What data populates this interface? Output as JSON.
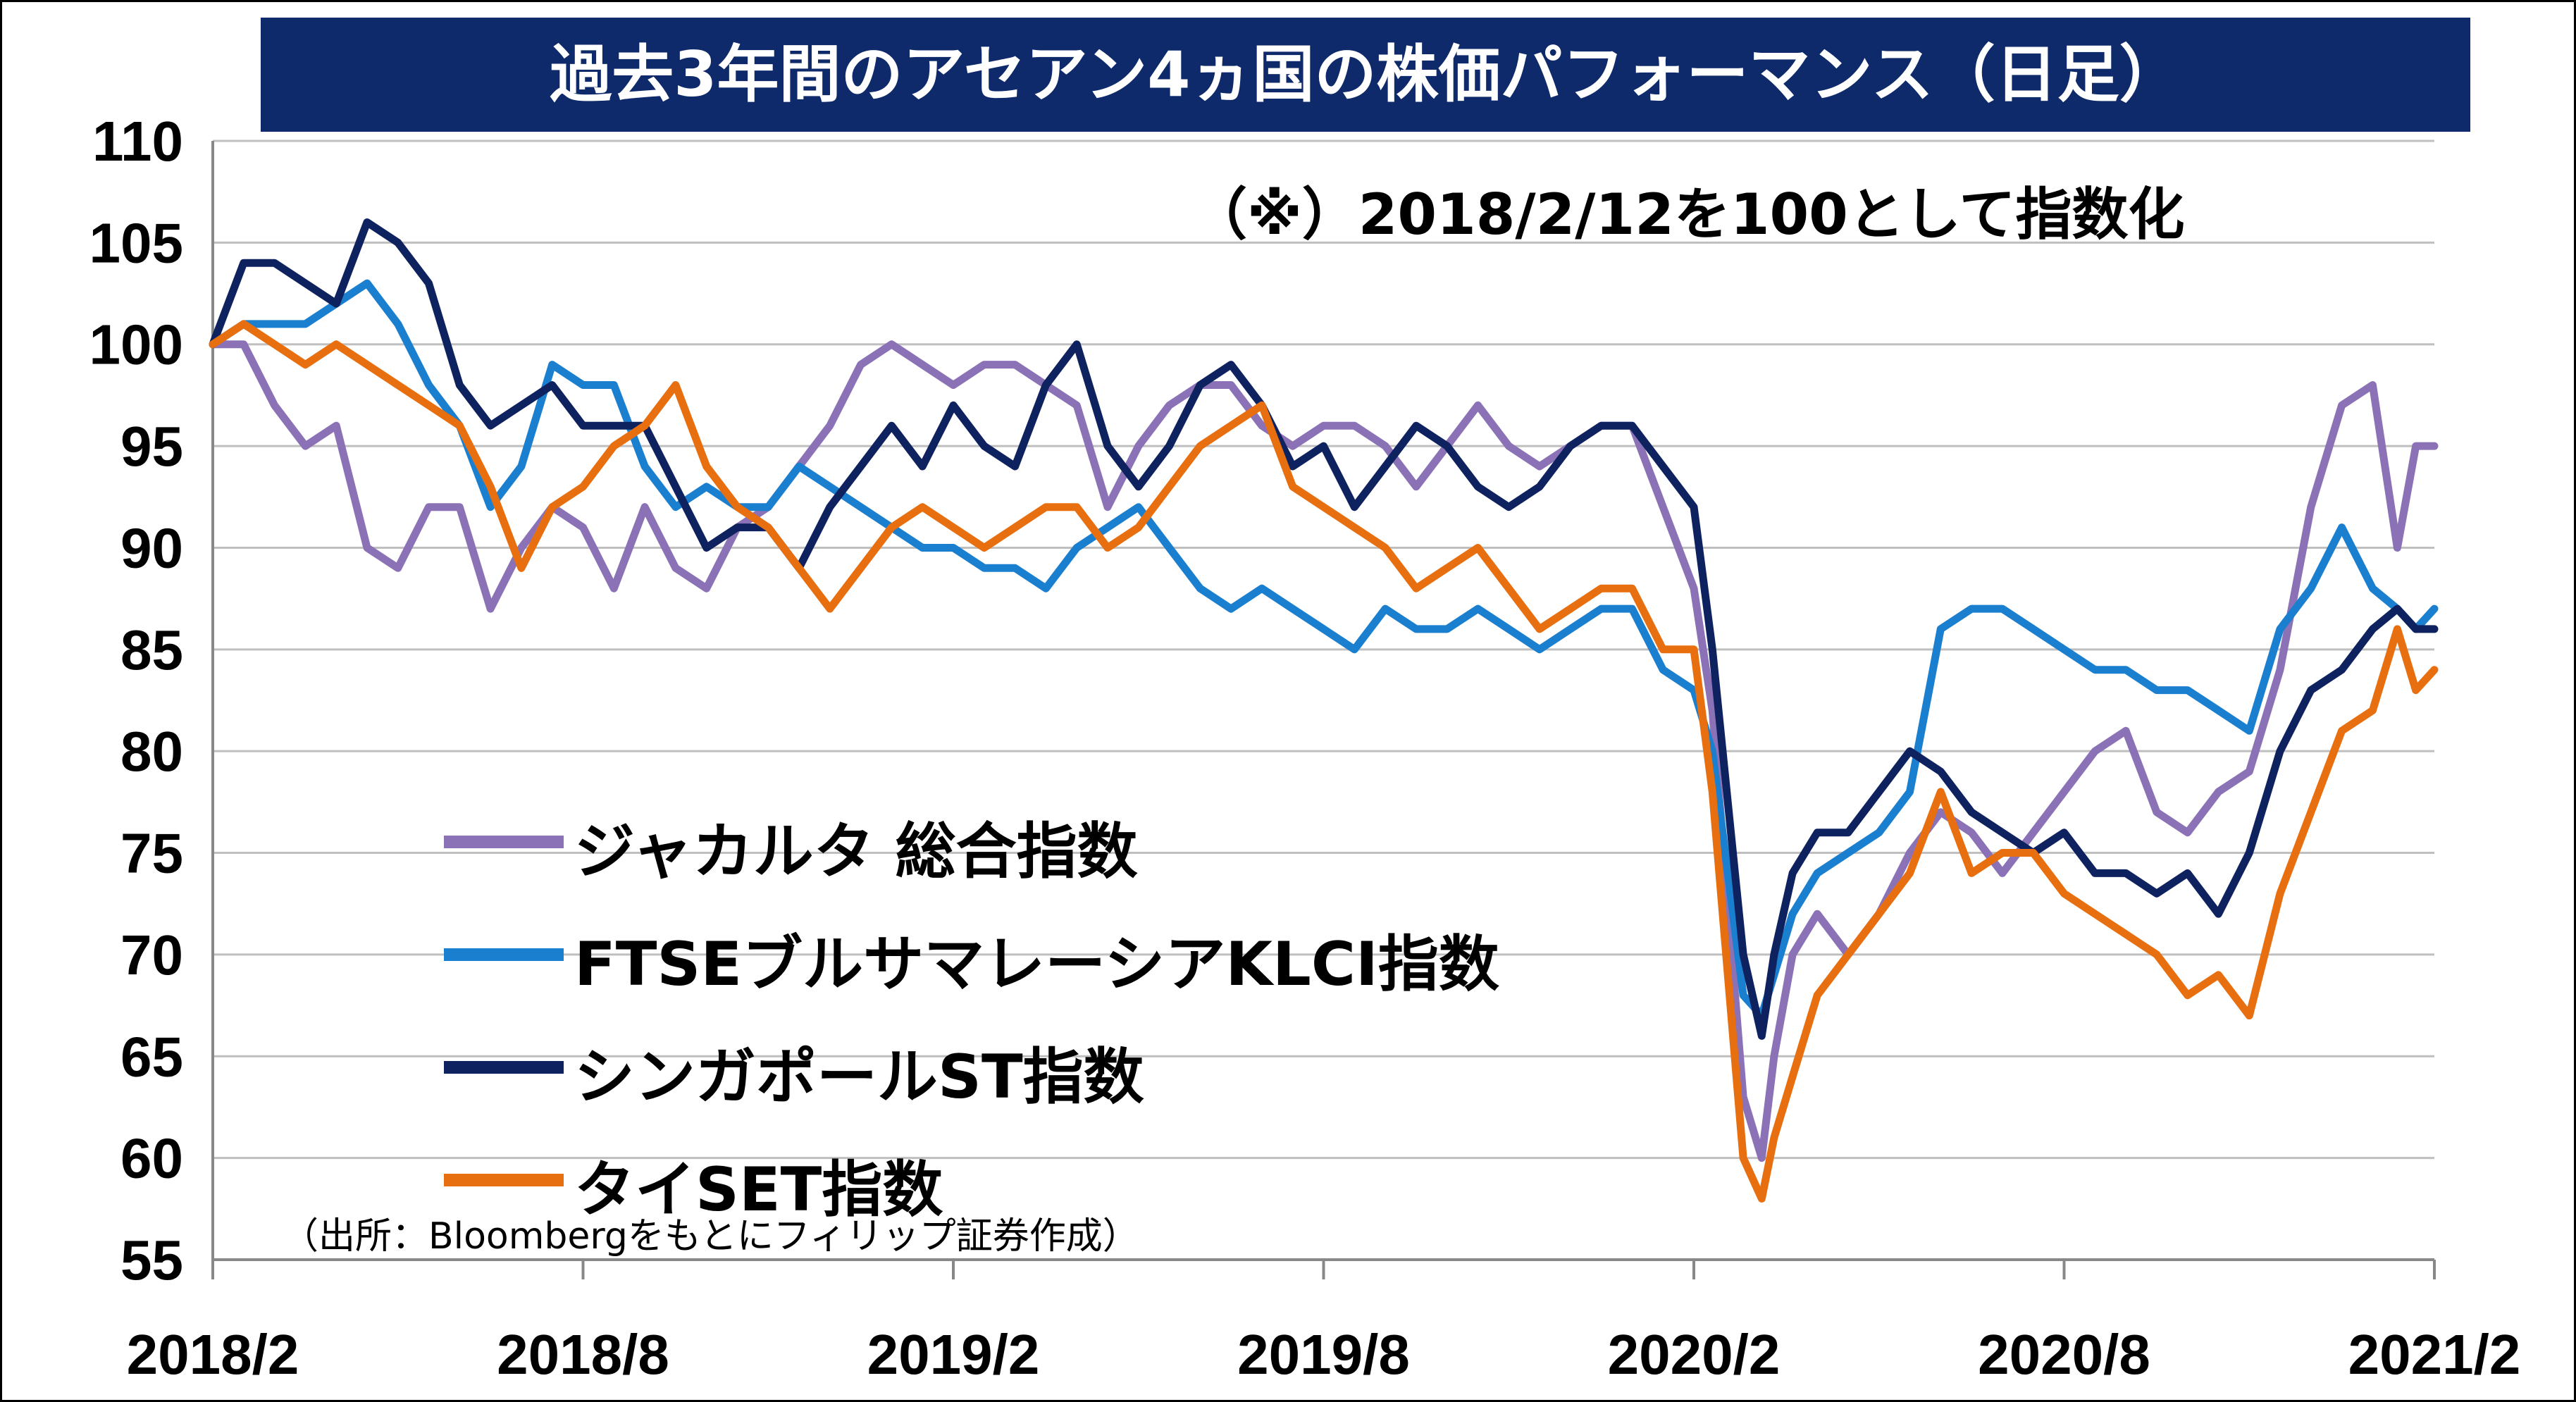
{
  "title": "過去3年間のアセアン4ヵ国の株価パフォーマンス（日足）",
  "note": "（※）2018/2/12を100として指数化",
  "source": "（出所：Bloombergをもとにフィリップ証券作成）",
  "colors": {
    "title_bg": "#0f2a6b",
    "jakarta": "#8b71b6",
    "klci": "#1b7fd0",
    "singapore": "#0f2260",
    "thai": "#e86f10",
    "grid": "#bfbfbf"
  },
  "chart_data": {
    "type": "line",
    "title": "過去3年間のアセアン4ヵ国の株価パフォーマンス（日足）",
    "ylim": [
      55,
      110
    ],
    "yticks": [
      110,
      105,
      100,
      95,
      90,
      85,
      80,
      75,
      70,
      65,
      60,
      55
    ],
    "xlim": [
      0,
      36
    ],
    "xticks": [
      {
        "pos": 0,
        "label": "2018/2"
      },
      {
        "pos": 6,
        "label": "2018/8"
      },
      {
        "pos": 12,
        "label": "2019/2"
      },
      {
        "pos": 18,
        "label": "2019/8"
      },
      {
        "pos": 24,
        "label": "2020/2"
      },
      {
        "pos": 30,
        "label": "2020/8"
      },
      {
        "pos": 36,
        "label": "2021/2"
      }
    ],
    "grid": "horizontal",
    "legend_position": "lower-left",
    "series": [
      {
        "name": "ジャカルタ 総合指数",
        "color": "#8b71b6",
        "x": [
          0,
          0.5,
          1,
          1.5,
          2,
          2.5,
          3,
          3.5,
          4,
          4.5,
          5,
          5.5,
          6,
          6.5,
          7,
          7.5,
          8,
          8.5,
          9,
          9.5,
          10,
          10.5,
          11,
          11.5,
          12,
          12.5,
          13,
          13.5,
          14,
          14.5,
          15,
          15.5,
          16,
          16.5,
          17,
          17.5,
          18,
          18.5,
          19,
          19.5,
          20,
          20.5,
          21,
          21.5,
          22,
          22.5,
          23,
          23.5,
          24,
          24.3,
          24.8,
          25.1,
          25.3,
          25.6,
          26,
          26.5,
          27,
          27.5,
          28,
          28.5,
          29,
          29.5,
          30,
          30.5,
          31,
          31.5,
          32,
          32.5,
          33,
          33.5,
          34,
          34.5,
          35,
          35.4,
          35.7,
          36
        ],
        "y": [
          100,
          100,
          97,
          95,
          96,
          90,
          89,
          92,
          92,
          87,
          90,
          92,
          91,
          88,
          92,
          89,
          88,
          91,
          92,
          94,
          96,
          99,
          100,
          99,
          98,
          99,
          99,
          98,
          97,
          92,
          95,
          97,
          98,
          98,
          96,
          95,
          96,
          96,
          95,
          93,
          95,
          97,
          95,
          94,
          95,
          96,
          96,
          92,
          88,
          82,
          63,
          60,
          65,
          70,
          72,
          70,
          72,
          75,
          77,
          76,
          74,
          76,
          78,
          80,
          81,
          77,
          76,
          78,
          79,
          84,
          92,
          97,
          98,
          90,
          95,
          95
        ]
      },
      {
        "name": "FTSEブルサマレーシアKLCI指数",
        "color": "#1b7fd0",
        "x": [
          0,
          0.5,
          1,
          1.5,
          2,
          2.5,
          3,
          3.5,
          4,
          4.5,
          5,
          5.5,
          6,
          6.5,
          7,
          7.5,
          8,
          8.5,
          9,
          9.5,
          10,
          10.5,
          11,
          11.5,
          12,
          12.5,
          13,
          13.5,
          14,
          14.5,
          15,
          15.5,
          16,
          16.5,
          17,
          17.5,
          18,
          18.5,
          19,
          19.5,
          20,
          20.5,
          21,
          21.5,
          22,
          22.5,
          23,
          23.5,
          24,
          24.3,
          24.8,
          25.1,
          25.3,
          25.6,
          26,
          26.5,
          27,
          27.5,
          28,
          28.5,
          29,
          29.5,
          30,
          30.5,
          31,
          31.5,
          32,
          32.5,
          33,
          33.5,
          34,
          34.5,
          35,
          35.4,
          35.7,
          36
        ],
        "y": [
          100,
          101,
          101,
          101,
          102,
          103,
          101,
          98,
          96,
          92,
          94,
          99,
          98,
          98,
          94,
          92,
          93,
          92,
          92,
          94,
          93,
          92,
          91,
          90,
          90,
          89,
          89,
          88,
          90,
          91,
          92,
          90,
          88,
          87,
          88,
          87,
          86,
          85,
          87,
          86,
          86,
          87,
          86,
          85,
          86,
          87,
          87,
          84,
          83,
          80,
          68,
          67,
          69,
          72,
          74,
          75,
          76,
          78,
          86,
          87,
          87,
          86,
          85,
          84,
          84,
          83,
          83,
          82,
          81,
          86,
          88,
          91,
          88,
          87,
          86,
          87
        ]
      },
      {
        "name": "シンガポールST指数",
        "color": "#0f2260",
        "x": [
          0,
          0.5,
          1,
          1.5,
          2,
          2.5,
          3,
          3.5,
          4,
          4.5,
          5,
          5.5,
          6,
          6.5,
          7,
          7.5,
          8,
          8.5,
          9,
          9.5,
          10,
          10.5,
          11,
          11.5,
          12,
          12.5,
          13,
          13.5,
          14,
          14.5,
          15,
          15.5,
          16,
          16.5,
          17,
          17.5,
          18,
          18.5,
          19,
          19.5,
          20,
          20.5,
          21,
          21.5,
          22,
          22.5,
          23,
          23.5,
          24,
          24.3,
          24.8,
          25.1,
          25.3,
          25.6,
          26,
          26.5,
          27,
          27.5,
          28,
          28.5,
          29,
          29.5,
          30,
          30.5,
          31,
          31.5,
          32,
          32.5,
          33,
          33.5,
          34,
          34.5,
          35,
          35.4,
          35.7,
          36
        ],
        "y": [
          100,
          104,
          104,
          103,
          102,
          106,
          105,
          103,
          98,
          96,
          97,
          98,
          96,
          96,
          96,
          93,
          90,
          91,
          91,
          89,
          92,
          94,
          96,
          94,
          97,
          95,
          94,
          98,
          100,
          95,
          93,
          95,
          98,
          99,
          97,
          94,
          95,
          92,
          94,
          96,
          95,
          93,
          92,
          93,
          95,
          96,
          96,
          94,
          92,
          85,
          70,
          66,
          70,
          74,
          76,
          76,
          78,
          80,
          79,
          77,
          76,
          75,
          76,
          74,
          74,
          73,
          74,
          72,
          75,
          80,
          83,
          84,
          86,
          87,
          86,
          86
        ]
      },
      {
        "name": "タイSET指数",
        "color": "#e86f10",
        "x": [
          0,
          0.5,
          1,
          1.5,
          2,
          2.5,
          3,
          3.5,
          4,
          4.5,
          5,
          5.5,
          6,
          6.5,
          7,
          7.5,
          8,
          8.5,
          9,
          9.5,
          10,
          10.5,
          11,
          11.5,
          12,
          12.5,
          13,
          13.5,
          14,
          14.5,
          15,
          15.5,
          16,
          16.5,
          17,
          17.5,
          18,
          18.5,
          19,
          19.5,
          20,
          20.5,
          21,
          21.5,
          22,
          22.5,
          23,
          23.5,
          24,
          24.3,
          24.8,
          25.1,
          25.3,
          25.6,
          26,
          26.5,
          27,
          27.5,
          28,
          28.5,
          29,
          29.5,
          30,
          30.5,
          31,
          31.5,
          32,
          32.5,
          33,
          33.5,
          34,
          34.5,
          35,
          35.4,
          35.7,
          36
        ],
        "y": [
          100,
          101,
          100,
          99,
          100,
          99,
          98,
          97,
          96,
          93,
          89,
          92,
          93,
          95,
          96,
          98,
          94,
          92,
          91,
          89,
          87,
          89,
          91,
          92,
          91,
          90,
          91,
          92,
          92,
          90,
          91,
          93,
          95,
          96,
          97,
          93,
          92,
          91,
          90,
          88,
          89,
          90,
          88,
          86,
          87,
          88,
          88,
          85,
          85,
          78,
          60,
          58,
          61,
          64,
          68,
          70,
          72,
          74,
          78,
          74,
          75,
          75,
          73,
          72,
          71,
          70,
          68,
          69,
          67,
          73,
          77,
          81,
          82,
          86,
          83,
          84
        ]
      }
    ]
  }
}
